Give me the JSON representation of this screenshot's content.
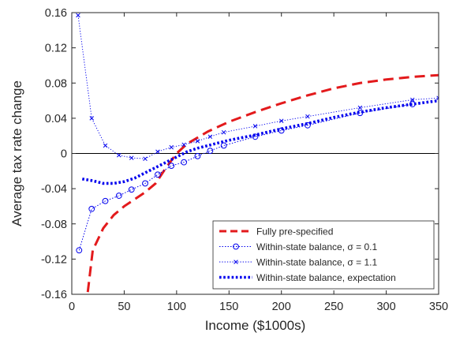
{
  "chart_data": {
    "type": "line",
    "title": "",
    "xlabel": "Income ($1000s)",
    "ylabel": "Average tax rate change",
    "xlim": [
      0,
      350
    ],
    "ylim": [
      -0.16,
      0.16
    ],
    "grid": false,
    "legend_position": "bottom-right",
    "zero_line": true,
    "x_ticks": [
      {
        "value": 0,
        "label": "0"
      },
      {
        "value": 50,
        "label": "50"
      },
      {
        "value": 100,
        "label": "100"
      },
      {
        "value": 150,
        "label": "150"
      },
      {
        "value": 200,
        "label": "200"
      },
      {
        "value": 250,
        "label": "250"
      },
      {
        "value": 300,
        "label": "300"
      },
      {
        "value": 350,
        "label": "350"
      }
    ],
    "y_ticks": [
      {
        "value": -0.16,
        "label": "-0.16"
      },
      {
        "value": -0.12,
        "label": "-0.12"
      },
      {
        "value": -0.08,
        "label": "-0.08"
      },
      {
        "value": -0.04,
        "label": "-0.04"
      },
      {
        "value": 0,
        "label": "0"
      },
      {
        "value": 0.04,
        "label": "0.04"
      },
      {
        "value": 0.08,
        "label": "0.08"
      },
      {
        "value": 0.12,
        "label": "0.12"
      },
      {
        "value": 0.16,
        "label": "0.16"
      }
    ],
    "series": [
      {
        "name": "Fully pre-specified",
        "color": "#e31a1c",
        "style": "dashed",
        "marker": "none",
        "points": [
          [
            12,
            -0.175
          ],
          [
            15,
            -0.16
          ],
          [
            20,
            -0.11
          ],
          [
            30,
            -0.085
          ],
          [
            40,
            -0.07
          ],
          [
            50,
            -0.06
          ],
          [
            60,
            -0.052
          ],
          [
            70,
            -0.044
          ],
          [
            80,
            -0.034
          ],
          [
            90,
            -0.016
          ],
          [
            100,
            0.0
          ],
          [
            110,
            0.011
          ],
          [
            120,
            0.018
          ],
          [
            130,
            0.025
          ],
          [
            150,
            0.036
          ],
          [
            175,
            0.047
          ],
          [
            200,
            0.057
          ],
          [
            225,
            0.066
          ],
          [
            250,
            0.074
          ],
          [
            275,
            0.08
          ],
          [
            300,
            0.084
          ],
          [
            325,
            0.087
          ],
          [
            350,
            0.089
          ]
        ]
      },
      {
        "name": "Within-state balance, σ = 0.1",
        "color": "#0000ee",
        "style": "dotted",
        "marker": "circle",
        "points": [
          [
            7,
            -0.11
          ],
          [
            19,
            -0.063
          ],
          [
            32,
            -0.054
          ],
          [
            45,
            -0.048
          ],
          [
            57,
            -0.041
          ],
          [
            70,
            -0.034
          ],
          [
            82,
            -0.024
          ],
          [
            95,
            -0.014
          ],
          [
            107,
            -0.01
          ],
          [
            120,
            -0.003
          ],
          [
            132,
            0.003
          ],
          [
            145,
            0.009
          ],
          [
            175,
            0.019
          ],
          [
            200,
            0.026
          ],
          [
            225,
            0.032
          ],
          [
            275,
            0.046
          ],
          [
            325,
            0.056
          ]
        ]
      },
      {
        "name": "Within-state balance, σ = 1.1",
        "color": "#0000ee",
        "style": "dotted-thin",
        "marker": "x",
        "points": [
          [
            6,
            0.157
          ],
          [
            19,
            0.04
          ],
          [
            32,
            0.009
          ],
          [
            45,
            -0.002
          ],
          [
            57,
            -0.005
          ],
          [
            70,
            -0.006
          ],
          [
            82,
            0.002
          ],
          [
            95,
            0.007
          ],
          [
            107,
            0.01
          ],
          [
            120,
            0.014
          ],
          [
            132,
            0.019
          ],
          [
            145,
            0.024
          ],
          [
            175,
            0.031
          ],
          [
            200,
            0.037
          ],
          [
            225,
            0.042
          ],
          [
            275,
            0.052
          ],
          [
            325,
            0.061
          ],
          [
            350,
            0.063
          ]
        ]
      },
      {
        "name": "Within-state balance, expectation",
        "color": "#0000ee",
        "style": "thick-dotted",
        "marker": "none",
        "points": [
          [
            10,
            -0.029
          ],
          [
            20,
            -0.031
          ],
          [
            30,
            -0.034
          ],
          [
            40,
            -0.034
          ],
          [
            50,
            -0.032
          ],
          [
            60,
            -0.028
          ],
          [
            70,
            -0.022
          ],
          [
            80,
            -0.016
          ],
          [
            90,
            -0.01
          ],
          [
            100,
            -0.004
          ],
          [
            110,
            0.002
          ],
          [
            120,
            0.006
          ],
          [
            130,
            0.009
          ],
          [
            150,
            0.015
          ],
          [
            175,
            0.021
          ],
          [
            200,
            0.028
          ],
          [
            225,
            0.034
          ],
          [
            250,
            0.041
          ],
          [
            275,
            0.047
          ],
          [
            300,
            0.052
          ],
          [
            325,
            0.056
          ],
          [
            350,
            0.06
          ]
        ]
      }
    ]
  }
}
